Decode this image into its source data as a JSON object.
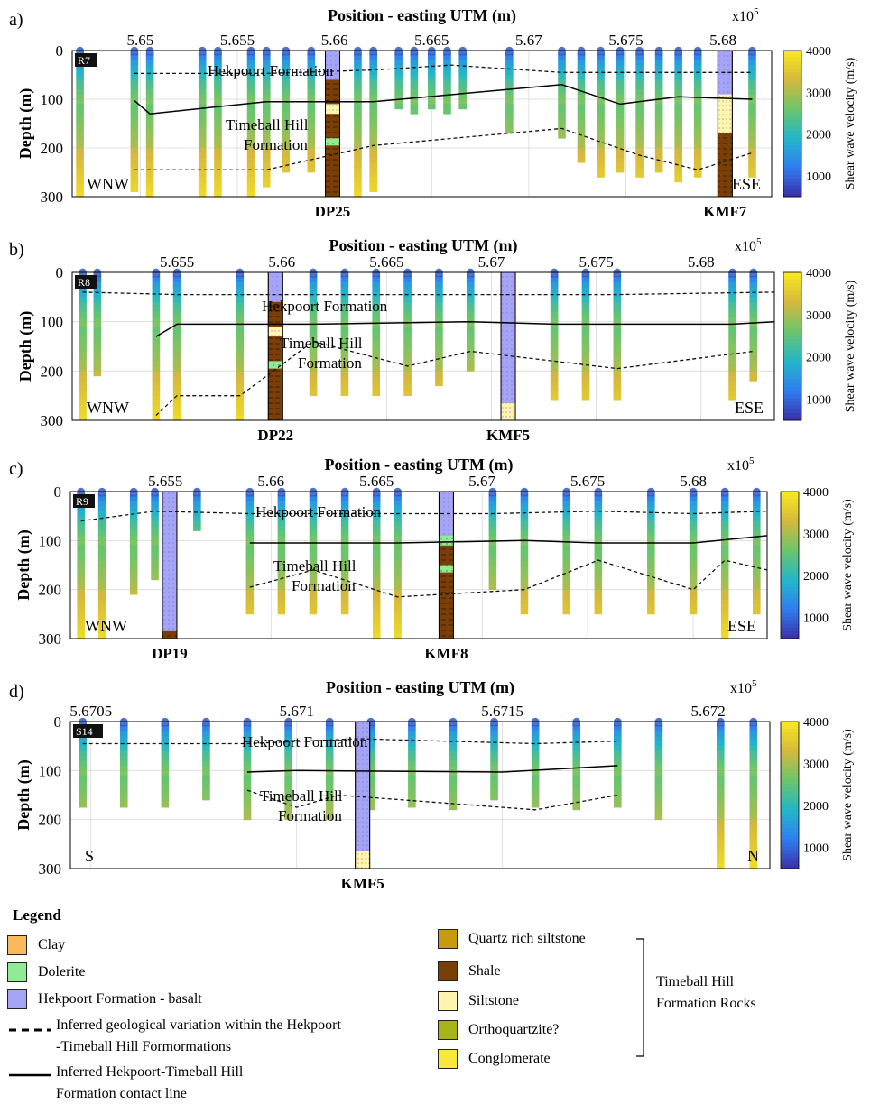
{
  "colorbar": {
    "min": 500,
    "max": 4000,
    "ticks": [
      "4000",
      "3000",
      "2000",
      "1000"
    ],
    "label": "Shear wave velocity (m/s)",
    "colors": [
      "#3b2fa8",
      "#2f7ff0",
      "#23b6c8",
      "#6bc56b",
      "#d7b83c",
      "#f9ea1f"
    ]
  },
  "x_exponent": "x10",
  "x_exponent_sup": "5",
  "chart_data": [
    {
      "type": "heatmap",
      "panel_label": "a)",
      "title": "Position - easting UTM (m)",
      "ylabel": "Depth (m)",
      "profile": "R7",
      "xlim": [
        5.6465,
        5.6825
      ],
      "ylim": [
        0,
        300
      ],
      "xticks": [
        "5.65",
        "5.655",
        "5.66",
        "5.665",
        "5.67",
        "5.675",
        "5.68"
      ],
      "xtick_values": [
        5.65,
        5.655,
        5.66,
        5.665,
        5.67,
        5.675,
        5.68
      ],
      "yticks": [
        "0",
        "100",
        "200",
        "300"
      ],
      "orientation_left": "WNW",
      "orientation_right": "ESE",
      "formation_upper": "Hekpoort Formation",
      "formation_lower_1": "Timeball Hill",
      "formation_lower_2": "Formation",
      "boreholes": [
        {
          "name": "DP25",
          "x": 5.6599
        },
        {
          "name": "KMF7",
          "x": 5.6801
        }
      ],
      "soundings": [
        {
          "x": 5.6469,
          "bottom": 300
        },
        {
          "x": 5.6497,
          "bottom": 290
        },
        {
          "x": 5.6505,
          "bottom": 300
        },
        {
          "x": 5.6532,
          "bottom": 300
        },
        {
          "x": 5.654,
          "bottom": 300
        },
        {
          "x": 5.6557,
          "bottom": 300
        },
        {
          "x": 5.6565,
          "bottom": 280
        },
        {
          "x": 5.6575,
          "bottom": 250
        },
        {
          "x": 5.6588,
          "bottom": 250
        },
        {
          "x": 5.6612,
          "bottom": 300
        },
        {
          "x": 5.662,
          "bottom": 290
        },
        {
          "x": 5.6633,
          "bottom": 120
        },
        {
          "x": 5.6641,
          "bottom": 130
        },
        {
          "x": 5.665,
          "bottom": 120
        },
        {
          "x": 5.6658,
          "bottom": 130
        },
        {
          "x": 5.6666,
          "bottom": 120
        },
        {
          "x": 5.669,
          "bottom": 170
        },
        {
          "x": 5.6717,
          "bottom": 180
        },
        {
          "x": 5.6727,
          "bottom": 230
        },
        {
          "x": 5.6737,
          "bottom": 260
        },
        {
          "x": 5.6747,
          "bottom": 250
        },
        {
          "x": 5.6757,
          "bottom": 260
        },
        {
          "x": 5.6767,
          "bottom": 250
        },
        {
          "x": 5.6777,
          "bottom": 270
        },
        {
          "x": 5.6787,
          "bottom": 260
        },
        {
          "x": 5.6815,
          "bottom": 260
        }
      ],
      "contact_line": [
        [
          5.6497,
          103
        ],
        [
          5.6505,
          130
        ],
        [
          5.6565,
          105
        ],
        [
          5.662,
          105
        ],
        [
          5.6717,
          70
        ],
        [
          5.6747,
          110
        ],
        [
          5.6777,
          95
        ],
        [
          5.6815,
          100
        ]
      ],
      "dashed_upper": [
        [
          5.6497,
          47
        ],
        [
          5.6505,
          47
        ],
        [
          5.6565,
          47
        ],
        [
          5.662,
          40
        ],
        [
          5.666,
          30
        ],
        [
          5.6717,
          45
        ],
        [
          5.6815,
          45
        ]
      ],
      "dashed_lower": [
        [
          5.6497,
          245
        ],
        [
          5.6505,
          245
        ],
        [
          5.6565,
          245
        ],
        [
          5.662,
          195
        ],
        [
          5.6717,
          160
        ],
        [
          5.6757,
          215
        ],
        [
          5.6787,
          245
        ],
        [
          5.6815,
          210
        ]
      ]
    },
    {
      "type": "heatmap",
      "panel_label": "b)",
      "title": "Position - easting UTM (m)",
      "ylabel": "Depth (m)",
      "profile": "R8",
      "xlim": [
        5.65,
        5.6835
      ],
      "ylim": [
        0,
        300
      ],
      "xticks": [
        "5.655",
        "5.66",
        "5.665",
        "5.67",
        "5.675",
        "5.68"
      ],
      "xtick_values": [
        5.655,
        5.66,
        5.665,
        5.67,
        5.675,
        5.68
      ],
      "yticks": [
        "0",
        "100",
        "200",
        "300"
      ],
      "orientation_left": "WNW",
      "orientation_right": "ESE",
      "formation_upper": "Hekpoort Formation",
      "formation_lower_1": "Timeball Hill",
      "formation_lower_2": "Formation",
      "boreholes": [
        {
          "name": "DP22",
          "x": 5.6597
        },
        {
          "name": "KMF5",
          "x": 5.6708
        }
      ],
      "soundings": [
        {
          "x": 5.6505,
          "bottom": 300
        },
        {
          "x": 5.6512,
          "bottom": 210
        },
        {
          "x": 5.654,
          "bottom": 300
        },
        {
          "x": 5.655,
          "bottom": 300
        },
        {
          "x": 5.658,
          "bottom": 300
        },
        {
          "x": 5.6615,
          "bottom": 250
        },
        {
          "x": 5.663,
          "bottom": 250
        },
        {
          "x": 5.6645,
          "bottom": 250
        },
        {
          "x": 5.666,
          "bottom": 250
        },
        {
          "x": 5.6675,
          "bottom": 230
        },
        {
          "x": 5.669,
          "bottom": 200
        },
        {
          "x": 5.673,
          "bottom": 260
        },
        {
          "x": 5.6745,
          "bottom": 260
        },
        {
          "x": 5.676,
          "bottom": 260
        },
        {
          "x": 5.6815,
          "bottom": 260
        },
        {
          "x": 5.6825,
          "bottom": 220
        }
      ],
      "contact_line": [
        [
          5.654,
          130
        ],
        [
          5.655,
          105
        ],
        [
          5.658,
          105
        ],
        [
          5.6615,
          105
        ],
        [
          5.669,
          100
        ],
        [
          5.673,
          105
        ],
        [
          5.676,
          105
        ],
        [
          5.6815,
          105
        ],
        [
          5.6835,
          100
        ]
      ],
      "dashed_upper": [
        [
          5.6505,
          40
        ],
        [
          5.655,
          45
        ],
        [
          5.669,
          45
        ],
        [
          5.676,
          45
        ],
        [
          5.6835,
          40
        ]
      ],
      "dashed_lower": [
        [
          5.654,
          290
        ],
        [
          5.655,
          250
        ],
        [
          5.658,
          250
        ],
        [
          5.6615,
          140
        ],
        [
          5.666,
          190
        ],
        [
          5.669,
          160
        ],
        [
          5.676,
          195
        ],
        [
          5.6825,
          160
        ]
      ]
    },
    {
      "type": "heatmap",
      "panel_label": "c)",
      "title": "Position - easting UTM (m)",
      "ylabel": "Depth (m)",
      "profile": "R9",
      "xlim": [
        5.6505,
        5.6835
      ],
      "ylim": [
        0,
        300
      ],
      "xticks": [
        "5.655",
        "5.66",
        "5.665",
        "5.67",
        "5.675",
        "5.68"
      ],
      "xtick_values": [
        5.655,
        5.66,
        5.665,
        5.67,
        5.675,
        5.68
      ],
      "yticks": [
        "0",
        "100",
        "200",
        "300"
      ],
      "orientation_left": "WNW",
      "orientation_right": "ESE",
      "formation_upper": "Hekpoort Formation",
      "formation_lower_1": "Timeball Hill",
      "formation_lower_2": "Formation",
      "boreholes": [
        {
          "name": "DP19",
          "x": 5.6552
        },
        {
          "name": "KMF8",
          "x": 5.6683
        }
      ],
      "soundings": [
        {
          "x": 5.651,
          "bottom": 300
        },
        {
          "x": 5.652,
          "bottom": 300
        },
        {
          "x": 5.6535,
          "bottom": 210
        },
        {
          "x": 5.6545,
          "bottom": 180
        },
        {
          "x": 5.6565,
          "bottom": 80
        },
        {
          "x": 5.659,
          "bottom": 250
        },
        {
          "x": 5.6605,
          "bottom": 250
        },
        {
          "x": 5.662,
          "bottom": 250
        },
        {
          "x": 5.6635,
          "bottom": 250
        },
        {
          "x": 5.665,
          "bottom": 300
        },
        {
          "x": 5.666,
          "bottom": 300
        },
        {
          "x": 5.6705,
          "bottom": 200
        },
        {
          "x": 5.672,
          "bottom": 250
        },
        {
          "x": 5.674,
          "bottom": 250
        },
        {
          "x": 5.6755,
          "bottom": 250
        },
        {
          "x": 5.678,
          "bottom": 250
        },
        {
          "x": 5.68,
          "bottom": 250
        },
        {
          "x": 5.6815,
          "bottom": 300
        },
        {
          "x": 5.683,
          "bottom": 250
        }
      ],
      "contact_line": [
        [
          5.659,
          105
        ],
        [
          5.662,
          105
        ],
        [
          5.666,
          105
        ],
        [
          5.672,
          100
        ],
        [
          5.6755,
          105
        ],
        [
          5.68,
          105
        ],
        [
          5.6835,
          90
        ]
      ],
      "dashed_upper": [
        [
          5.651,
          60
        ],
        [
          5.6545,
          40
        ],
        [
          5.659,
          45
        ],
        [
          5.666,
          45
        ],
        [
          5.6705,
          45
        ],
        [
          5.6755,
          40
        ],
        [
          5.68,
          45
        ],
        [
          5.6835,
          40
        ]
      ],
      "dashed_lower": [
        [
          5.659,
          195
        ],
        [
          5.662,
          160
        ],
        [
          5.666,
          215
        ],
        [
          5.672,
          200
        ],
        [
          5.6755,
          140
        ],
        [
          5.68,
          200
        ],
        [
          5.6815,
          140
        ],
        [
          5.6835,
          160
        ]
      ]
    },
    {
      "type": "heatmap",
      "panel_label": "d)",
      "title": "Position - easting UTM (m)",
      "ylabel": "Depth (m)",
      "profile": "S14",
      "xlim": [
        5.67045,
        5.67215
      ],
      "ylim": [
        0,
        300
      ],
      "xticks": [
        "5.6705",
        "5.671",
        "5.6715",
        "5.672"
      ],
      "xtick_values": [
        5.6705,
        5.671,
        5.6715,
        5.672
      ],
      "yticks": [
        "0",
        "100",
        "200",
        "300"
      ],
      "orientation_left": "S",
      "orientation_right": "N",
      "formation_upper": "Hekpoort Formation",
      "formation_lower_1": "Timeball Hill",
      "formation_lower_2": "Formation",
      "boreholes": [
        {
          "name": "KMF5",
          "x": 5.67116
        }
      ],
      "soundings": [
        {
          "x": 5.67048,
          "bottom": 175
        },
        {
          "x": 5.67058,
          "bottom": 175
        },
        {
          "x": 5.67068,
          "bottom": 175
        },
        {
          "x": 5.67078,
          "bottom": 160
        },
        {
          "x": 5.67088,
          "bottom": 200
        },
        {
          "x": 5.67098,
          "bottom": 200
        },
        {
          "x": 5.67108,
          "bottom": 200
        },
        {
          "x": 5.67118,
          "bottom": 180
        },
        {
          "x": 5.67128,
          "bottom": 175
        },
        {
          "x": 5.67138,
          "bottom": 180
        },
        {
          "x": 5.67148,
          "bottom": 160
        },
        {
          "x": 5.67158,
          "bottom": 175
        },
        {
          "x": 5.67168,
          "bottom": 180
        },
        {
          "x": 5.67178,
          "bottom": 175
        },
        {
          "x": 5.67188,
          "bottom": 200
        },
        {
          "x": 5.67203,
          "bottom": 300
        },
        {
          "x": 5.67211,
          "bottom": 300
        }
      ],
      "contact_line": [
        [
          5.67088,
          103
        ],
        [
          5.671,
          100
        ],
        [
          5.6715,
          103
        ],
        [
          5.67178,
          90
        ]
      ],
      "dashed_upper": [
        [
          5.67048,
          45
        ],
        [
          5.67088,
          45
        ],
        [
          5.67115,
          35
        ],
        [
          5.67158,
          45
        ],
        [
          5.67178,
          40
        ]
      ],
      "dashed_lower": [
        [
          5.67088,
          140
        ],
        [
          5.671,
          175
        ],
        [
          5.6711,
          150
        ],
        [
          5.67158,
          180
        ],
        [
          5.67178,
          150
        ]
      ]
    }
  ],
  "legend": {
    "title": "Legend",
    "items": [
      {
        "key": "clay",
        "label": "Clay",
        "color": "#f9b95e"
      },
      {
        "key": "dolerite",
        "label": "Dolerite",
        "color": "#8fec95"
      },
      {
        "key": "basalt",
        "label": "Hekpoort Formation - basalt",
        "color": "#a6a4f6"
      },
      {
        "key": "quartz_siltstone",
        "label": "Quartz rich siltstone",
        "color": "#c89a0d"
      },
      {
        "key": "shale",
        "label": "Shale",
        "color": "#7a3f06"
      },
      {
        "key": "siltstone",
        "label": "Siltstone",
        "color": "#fff4b0"
      },
      {
        "key": "orthoquartzite",
        "label": "Orthoquartzite?",
        "color": "#a8b51a"
      },
      {
        "key": "conglomerate",
        "label": "Conglomerate",
        "color": "#f7e93a"
      }
    ],
    "dashed_label_1": "Inferred geological variation within the Hekpoort",
    "dashed_label_2": "-Timeball Hill Formormations",
    "solid_label_1": "Inferred Hekpoort-Timeball Hill",
    "solid_label_2": "Formation contact line",
    "group_label_1": "Timeball Hill",
    "group_label_2": "Formation Rocks"
  }
}
